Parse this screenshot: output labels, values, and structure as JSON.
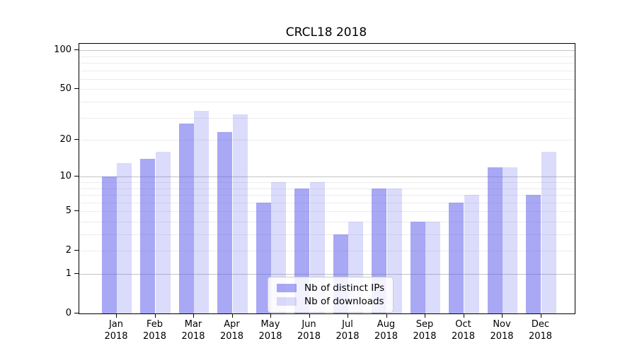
{
  "chart_data": {
    "type": "bar",
    "title": "CRCL18 2018",
    "categories": [
      "Jan",
      "Feb",
      "Mar",
      "Apr",
      "May",
      "Jun",
      "Jul",
      "Aug",
      "Sep",
      "Oct",
      "Nov",
      "Dec"
    ],
    "category_year": "2018",
    "series": [
      {
        "name": "Nb of distinct IPs",
        "color": "rgba(90,90,235,0.53)",
        "solid_hex": "#a8a8f2",
        "values": [
          10,
          14,
          27,
          23,
          6,
          8,
          3,
          8,
          4,
          6,
          12,
          7
        ]
      },
      {
        "name": "Nb of downloads",
        "color": "rgba(90,90,235,0.22)",
        "solid_hex": "#dcdcf8",
        "values": [
          13,
          16,
          34,
          32,
          9,
          9,
          4,
          8,
          4,
          7,
          12,
          16
        ]
      }
    ],
    "xlabel": "",
    "ylabel": "",
    "y_ticks": [
      0,
      1,
      2,
      5,
      10,
      20,
      50,
      100
    ],
    "y_scale": "log10(value+1)",
    "ylim": [
      0,
      112
    ],
    "grid": "horizontal, major and minor",
    "major_grid_values": [
      1,
      10,
      100
    ],
    "minor_grid_values": [
      2,
      3,
      4,
      5,
      6,
      7,
      8,
      9,
      20,
      30,
      40,
      50,
      60,
      70,
      80,
      90
    ],
    "legend_position": "lower center",
    "colors": {
      "major_grid": "#c3c3c3",
      "minor_grid": "#ececec",
      "spine": "#000000",
      "background": "#ffffff"
    }
  }
}
